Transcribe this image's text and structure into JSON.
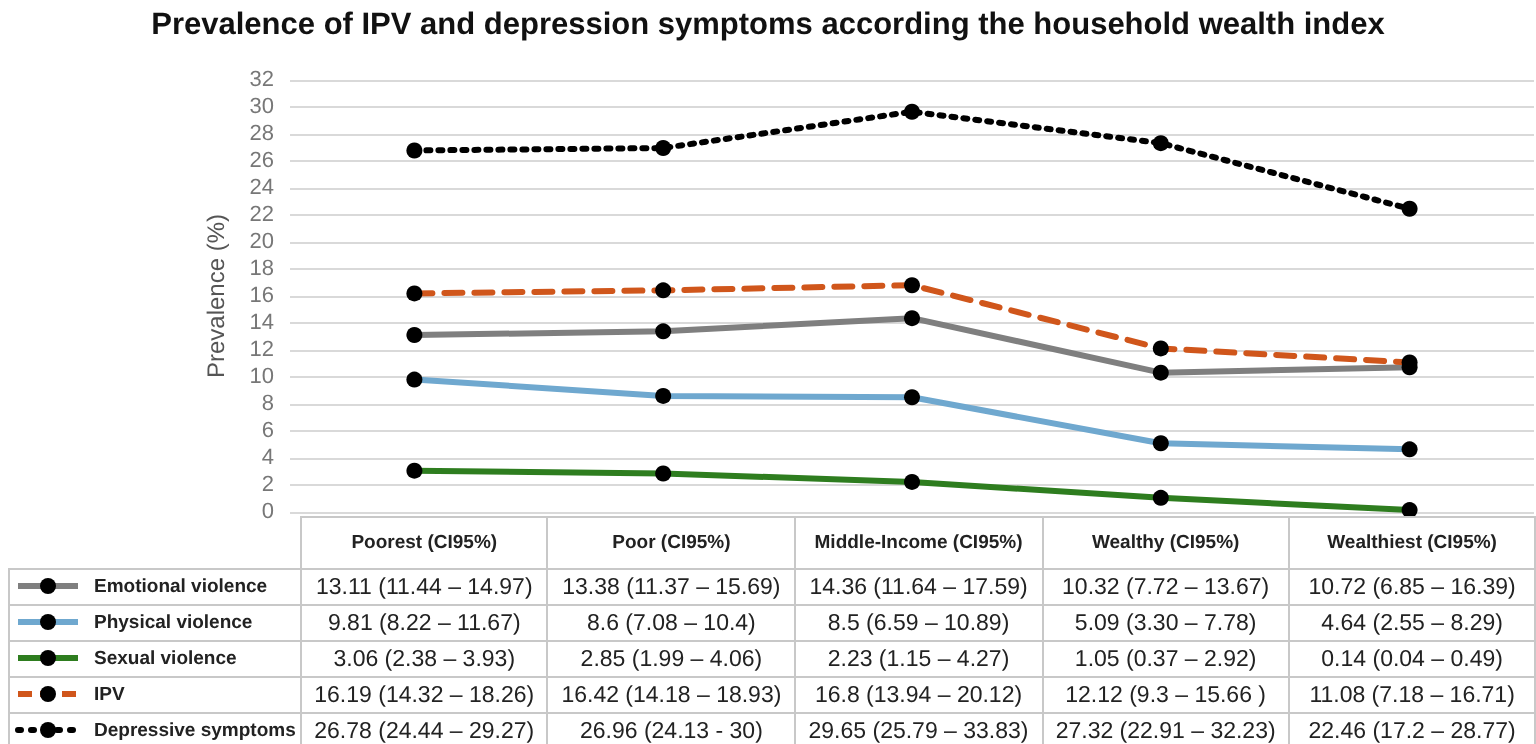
{
  "chart_data": {
    "type": "line",
    "title": "Prevalence of IPV and depression symptoms according the household wealth index",
    "ylabel": "Prevalence (%)",
    "categories": [
      "Poorest (CI95%)",
      "Poor (CI95%)",
      "Middle-Income (CI95%)",
      "Wealthy (CI95%)",
      "Wealthiest (CI95%)"
    ],
    "ylim": [
      0,
      32
    ],
    "yticks": [
      0,
      2,
      4,
      6,
      8,
      10,
      12,
      14,
      16,
      18,
      20,
      22,
      24,
      26,
      28,
      30,
      32
    ],
    "grid": "y",
    "legend": "bottom left",
    "marker": "circle",
    "series": [
      {
        "name": "Emotional violence",
        "color": "#7f7f7f",
        "line_style": "solid",
        "values": [
          13.11,
          13.38,
          14.36,
          10.32,
          10.72
        ],
        "value_labels": [
          "13.11 (11.44 – 14.97)",
          "13.38 (11.37 – 15.69)",
          "14.36 (11.64 – 17.59)",
          "10.32 (7.72 – 13.67)",
          "10.72 (6.85 – 16.39)"
        ]
      },
      {
        "name": "Physical violence",
        "color": "#6fa8cf",
        "line_style": "solid",
        "values": [
          9.81,
          8.6,
          8.5,
          5.09,
          4.64
        ],
        "value_labels": [
          "9.81 (8.22 – 11.67)",
          "8.6 (7.08 – 10.4)",
          "8.5 (6.59 – 10.89)",
          "5.09 (3.30 – 7.78)",
          "4.64 (2.55 – 8.29)"
        ]
      },
      {
        "name": "Sexual violence",
        "color": "#2e7d1f",
        "line_style": "solid",
        "values": [
          3.06,
          2.85,
          2.23,
          1.05,
          0.14
        ],
        "value_labels": [
          "3.06 (2.38 – 3.93)",
          "2.85 (1.99 – 4.06)",
          "2.23 (1.15 – 4.27)",
          "1.05 (0.37 – 2.92)",
          "0.14 (0.04 – 0.49)"
        ]
      },
      {
        "name": "IPV",
        "color": "#d0561b",
        "line_style": "dashed",
        "values": [
          16.19,
          16.42,
          16.8,
          12.12,
          11.08
        ],
        "value_labels": [
          "16.19 (14.32 – 18.26)",
          "16.42 (14.18 – 18.93)",
          "16.8 (13.94 – 20.12)",
          "12.12 (9.3 – 15.66 )",
          "11.08 (7.18 – 16.71)"
        ]
      },
      {
        "name": "Depressive symptoms",
        "color": "#000000",
        "line_style": "dotted",
        "values": [
          26.78,
          26.96,
          29.65,
          27.32,
          22.46
        ],
        "value_labels": [
          "26.78 (24.44 – 29.27)",
          "26.96 (24.13 - 30)",
          "29.65 (25.79 – 33.83)",
          "27.32 (22.91 – 32.23)",
          "22.46 (17.2 – 28.77)"
        ]
      }
    ]
  }
}
